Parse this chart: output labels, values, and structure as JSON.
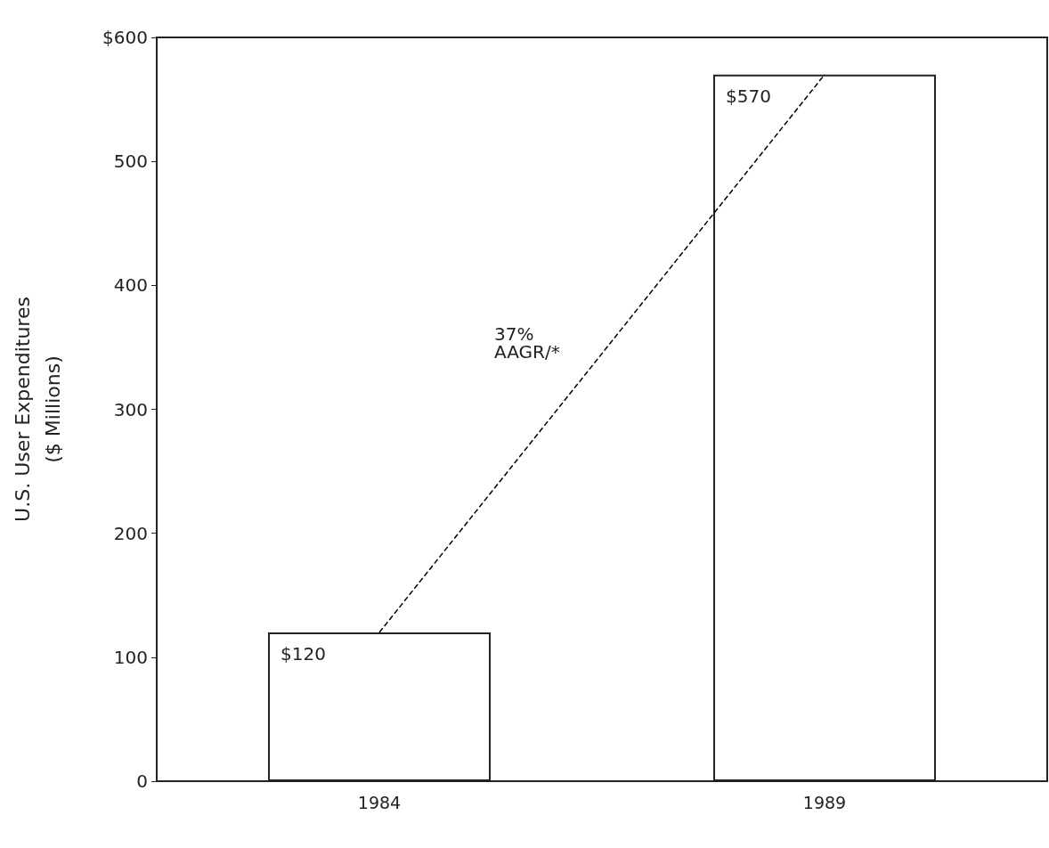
{
  "chart_data": {
    "type": "bar",
    "ylabel": "U.S. User Expenditures\n($ Millions)",
    "categories": [
      "1984",
      "1989"
    ],
    "series": [
      {
        "color": "#ffffff",
        "values": [
          120,
          570
        ],
        "value_labels": [
          "$120",
          "$570"
        ]
      },
      {
        "type": "line",
        "color": "#000000",
        "values": [
          120,
          570
        ],
        "line_style": "dashed",
        "marker": "none"
      }
    ],
    "ylim": [
      0,
      600
    ],
    "yticks": [
      0,
      100,
      200,
      300,
      400,
      500,
      {
        "value": 600,
        "label": "$600"
      }
    ],
    "grid": false,
    "annotations": [
      "37% AAGR/*"
    ]
  }
}
